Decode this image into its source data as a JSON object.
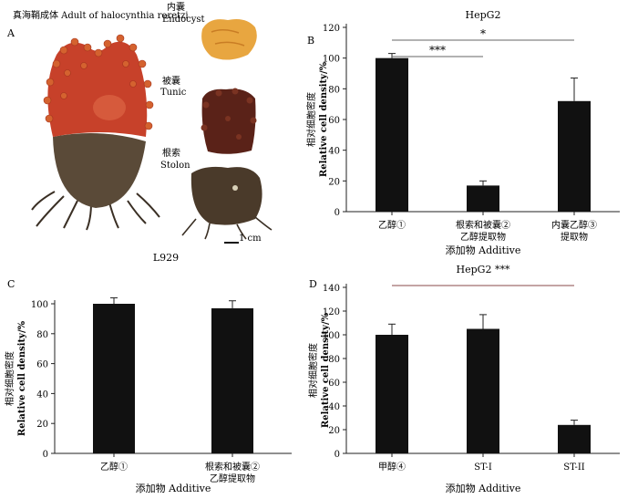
{
  "panel_a": {
    "letter": "A",
    "label_adult": "真海鞘成体 Adult of halocynthia roretzi",
    "label_endocyst_cn": "内囊",
    "label_endocyst_en": "Endocyst",
    "label_tunic_cn": "被囊",
    "label_tunic_en": "Tunic",
    "label_stolon_cn": "根索",
    "label_stolon_en": "Stolon",
    "scale_bar": "1 cm"
  },
  "chart_data": [
    {
      "panel": "B",
      "type": "bar",
      "title": "HepG2",
      "ylabel_cn": "相对细胞密度",
      "ylabel_en": "Relative cell density/%",
      "xlabel": "添加物 Additive",
      "categories": [
        [
          "乙醇①"
        ],
        [
          "根索和被囊②",
          "乙醇提取物"
        ],
        [
          "内囊乙醇③",
          "提取物"
        ]
      ],
      "values": [
        100,
        17,
        72
      ],
      "errors": [
        3,
        3,
        15
      ],
      "ylim": [
        0,
        120
      ],
      "yticks": [
        0,
        20,
        40,
        60,
        80,
        100,
        120
      ],
      "significance": [
        {
          "label": "***",
          "from": 0,
          "to": 1
        },
        {
          "label": "*",
          "from": 0,
          "to": 2
        }
      ]
    },
    {
      "panel": "C",
      "type": "bar",
      "title": "L929",
      "ylabel_cn": "相对细胞密度",
      "ylabel_en": "Relative cell density/%",
      "xlabel": "添加物 Additive",
      "categories": [
        [
          "乙醇①"
        ],
        [
          "根索和被囊②",
          "乙醇提取物"
        ]
      ],
      "values": [
        100,
        97
      ],
      "errors": [
        4,
        5
      ],
      "ylim": [
        0,
        100
      ],
      "yticks": [
        0,
        20,
        40,
        60,
        80,
        100
      ]
    },
    {
      "panel": "D",
      "type": "bar",
      "title": "HepG2 ***",
      "ylabel_cn": "相对细胞密度",
      "ylabel_en": "Relative cell density/%",
      "xlabel": "添加物 Additive",
      "categories": [
        [
          "甲醇④"
        ],
        [
          "ST-I"
        ],
        [
          "ST-II"
        ]
      ],
      "values": [
        100,
        105,
        24
      ],
      "errors": [
        9,
        12,
        4
      ],
      "ylim": [
        0,
        140
      ],
      "yticks": [
        0,
        20,
        40,
        60,
        80,
        100,
        120,
        140
      ],
      "significance": [
        {
          "label": "",
          "from": 0,
          "to": 2
        }
      ]
    }
  ],
  "colors": {
    "bar": "#111111",
    "axis": "#222222",
    "sig_line_b": "#666666",
    "sig_line_d": "#8a4a4a",
    "organism_body": "#c7412a",
    "organism_spines": "#d4622f",
    "endocyst": "#e8a640",
    "tunic": "#5a2218",
    "stolon": "#4a3a2a"
  }
}
